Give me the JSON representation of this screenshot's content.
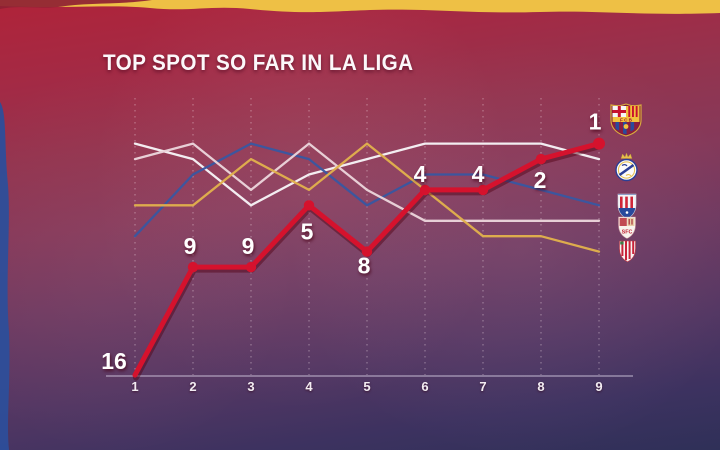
{
  "title": "TOP SPOT SO FAR IN LA LIGA",
  "chart_data": {
    "type": "line",
    "title": "TOP SPOT SO FAR IN LA LIGA",
    "x_ticks": [
      "1",
      "2",
      "3",
      "4",
      "5",
      "6",
      "7",
      "8",
      "9"
    ],
    "y_axis": "league position (1 = top spot, axis inverted, only leader rows gridded)",
    "y_range": [
      1,
      16
    ],
    "grid": "vertical dashed gridlines per matchday",
    "legend_position": "right edge, club crests aligned to each team's final position",
    "series": [
      {
        "team": "FC Barcelona",
        "color": "#d5122d",
        "highlight": true,
        "values": [
          16,
          9,
          9,
          5,
          8,
          4,
          4,
          2,
          1
        ],
        "point_labels": [
          "16",
          "9",
          "9",
          "5",
          "8",
          "4",
          "4",
          "2",
          "1"
        ]
      },
      {
        "team": "Real Madrid",
        "color": "#f6f3f6",
        "values": [
          1,
          2,
          5,
          3,
          2,
          1,
          1,
          1,
          2
        ]
      },
      {
        "team": "Atletico Madrid",
        "color": "#3a57a0",
        "values": [
          7,
          3,
          1,
          2,
          5,
          3,
          3,
          4,
          5
        ]
      },
      {
        "team": "Sevilla",
        "color": "#ead4da",
        "values": [
          2,
          1,
          4,
          1,
          4,
          6,
          6,
          6,
          6
        ]
      },
      {
        "team": "Athletic Club",
        "color": "#e0af4c",
        "values": [
          5,
          5,
          2,
          4,
          1,
          4,
          7,
          7,
          8
        ]
      }
    ]
  },
  "legend": {
    "crests": [
      "FC Barcelona",
      "Real Madrid",
      "Atletico Madrid",
      "Sevilla",
      "Athletic Club"
    ]
  },
  "colors": {
    "background_top": "#b02339",
    "background_bottom": "#2f3058",
    "top_band": "#eec045",
    "top_band_overlay": "#8e2133",
    "left_stripe": "#2d4e9a",
    "gridline": "rgba(255,238,244,0.38)",
    "axis": "rgba(226,219,238,0.8)",
    "tick": "#f2ecf2",
    "point_label": "#ffffff"
  }
}
